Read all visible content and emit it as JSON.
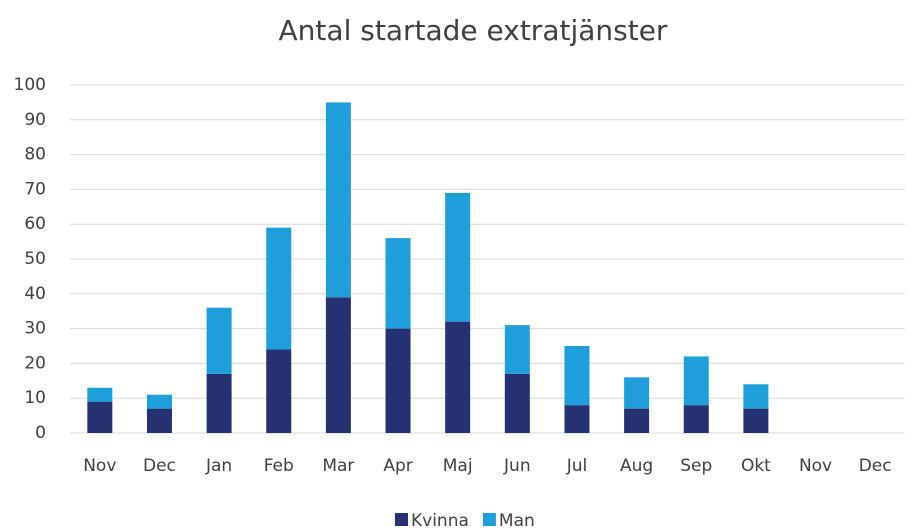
{
  "chart_data": {
    "type": "stacked_bar",
    "title": "Antal startade extratjänster",
    "categories": [
      "Nov",
      "Dec",
      "Jan",
      "Feb",
      "Mar",
      "Apr",
      "Maj",
      "Jun",
      "Jul",
      "Aug",
      "Sep",
      "Okt",
      "Nov",
      "Dec"
    ],
    "series": [
      {
        "name": "Kvinna",
        "color": "#253170",
        "values": [
          9,
          7,
          17,
          24,
          39,
          30,
          32,
          17,
          8,
          7,
          8,
          7,
          null,
          null
        ]
      },
      {
        "name": "Man",
        "color": "#1e9fdb",
        "values": [
          4,
          4,
          19,
          35,
          56,
          26,
          37,
          14,
          17,
          9,
          14,
          7,
          null,
          null
        ]
      }
    ],
    "ylim": [
      0,
      100
    ],
    "yticks": [
      0,
      10,
      20,
      30,
      40,
      50,
      60,
      70,
      80,
      90,
      100
    ],
    "grid": true,
    "legend": "bottom"
  }
}
